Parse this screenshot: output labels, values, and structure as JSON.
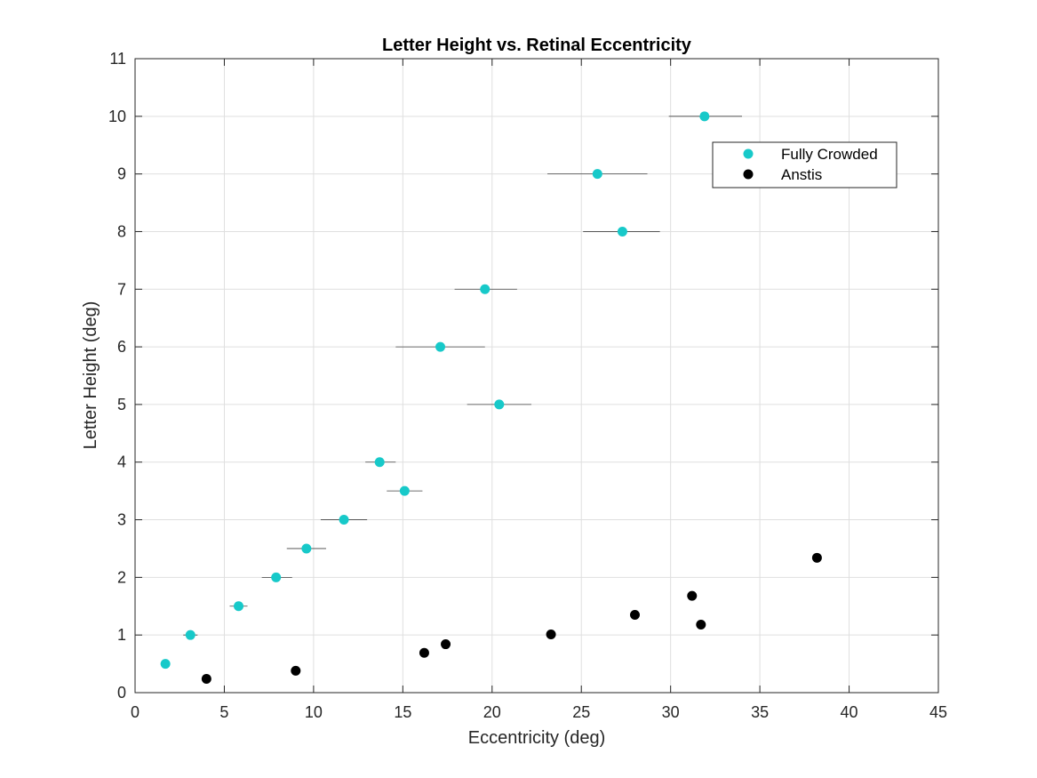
{
  "chart_data": {
    "type": "scatter",
    "title": "Letter Height vs. Retinal Eccentricity",
    "xlabel": "Eccentricity (deg)",
    "ylabel": "Letter Height (deg)",
    "xlim": [
      0,
      45
    ],
    "ylim": [
      0,
      11
    ],
    "xticks": [
      0,
      5,
      10,
      15,
      20,
      25,
      30,
      35,
      40,
      45
    ],
    "yticks": [
      0,
      1,
      2,
      3,
      4,
      5,
      6,
      7,
      8,
      9,
      10,
      11
    ],
    "grid": true,
    "legend_position": "top-right",
    "series": [
      {
        "name": "Fully Crowded",
        "color": "#17c9c9",
        "x": [
          1.7,
          3.1,
          5.8,
          7.9,
          9.6,
          11.7,
          13.7,
          15.1,
          20.4,
          17.1,
          19.6,
          27.3,
          25.9,
          31.9
        ],
        "y": [
          0.5,
          1.0,
          1.5,
          2.0,
          2.5,
          3.0,
          4.0,
          3.5,
          5.0,
          6.0,
          7.0,
          8.0,
          9.0,
          10.0
        ],
        "xerr_low": [
          0,
          0.4,
          0.5,
          0.8,
          1.1,
          1.3,
          0.8,
          1.0,
          1.8,
          2.5,
          1.7,
          2.2,
          2.8,
          2.0
        ],
        "xerr_high": [
          0,
          0.4,
          0.5,
          0.9,
          1.1,
          1.3,
          0.9,
          1.0,
          1.8,
          2.5,
          1.8,
          2.1,
          2.8,
          2.1
        ]
      },
      {
        "name": "Anstis",
        "color": "#000000",
        "x": [
          4.0,
          9.0,
          16.2,
          17.4,
          23.3,
          28.0,
          31.2,
          31.7,
          38.2
        ],
        "y": [
          0.24,
          0.38,
          0.69,
          0.84,
          1.01,
          1.35,
          1.68,
          1.18,
          2.34
        ]
      }
    ]
  }
}
